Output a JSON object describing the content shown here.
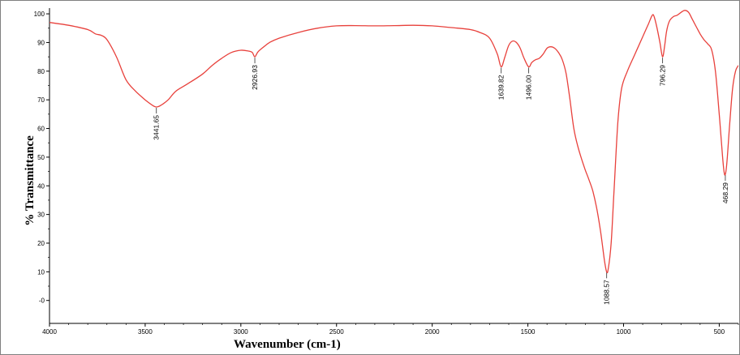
{
  "chart_data": {
    "type": "line",
    "xlabel": "Wavenumber  (cm-1)",
    "ylabel": "% Transmittance",
    "xlim": [
      4000,
      400
    ],
    "ylim": [
      -8,
      102
    ],
    "x_reversed": true,
    "grid": false,
    "line_color": "#e8413c",
    "x_ticks": [
      4000,
      3500,
      3000,
      2500,
      2000,
      1500,
      1000,
      500
    ],
    "y_ticks": [
      100,
      90,
      80,
      70,
      60,
      50,
      40,
      30,
      20,
      10,
      0
    ],
    "y_tick_labels": [
      "100",
      "90",
      "80",
      "70",
      "60",
      "50",
      "40",
      "30",
      "20",
      "10",
      "-0"
    ],
    "series": [
      {
        "points": [
          [
            4000,
            97
          ],
          [
            3900,
            96
          ],
          [
            3800,
            94.5
          ],
          [
            3760,
            93
          ],
          [
            3730,
            92.5
          ],
          [
            3700,
            91
          ],
          [
            3650,
            85
          ],
          [
            3600,
            77
          ],
          [
            3550,
            73
          ],
          [
            3500,
            70
          ],
          [
            3460,
            68
          ],
          [
            3441.65,
            67.5
          ],
          [
            3420,
            68
          ],
          [
            3380,
            70
          ],
          [
            3340,
            73
          ],
          [
            3280,
            75.5
          ],
          [
            3200,
            79
          ],
          [
            3150,
            82
          ],
          [
            3100,
            84.5
          ],
          [
            3050,
            86.5
          ],
          [
            3000,
            87.3
          ],
          [
            2960,
            87
          ],
          [
            2940,
            86.5
          ],
          [
            2926.93,
            85
          ],
          [
            2910,
            86.8
          ],
          [
            2880,
            88.5
          ],
          [
            2850,
            90
          ],
          [
            2800,
            91.5
          ],
          [
            2700,
            93.5
          ],
          [
            2600,
            95
          ],
          [
            2500,
            95.8
          ],
          [
            2400,
            95.9
          ],
          [
            2300,
            95.8
          ],
          [
            2200,
            95.9
          ],
          [
            2100,
            96
          ],
          [
            2000,
            95.8
          ],
          [
            1900,
            95.2
          ],
          [
            1800,
            94.5
          ],
          [
            1750,
            93.5
          ],
          [
            1700,
            91.5
          ],
          [
            1660,
            86
          ],
          [
            1639.82,
            81.5
          ],
          [
            1620,
            85
          ],
          [
            1600,
            89
          ],
          [
            1580,
            90.5
          ],
          [
            1560,
            90
          ],
          [
            1540,
            88
          ],
          [
            1520,
            84.5
          ],
          [
            1496,
            81.5
          ],
          [
            1480,
            83
          ],
          [
            1460,
            84
          ],
          [
            1440,
            84.5
          ],
          [
            1420,
            86
          ],
          [
            1400,
            88
          ],
          [
            1380,
            88.5
          ],
          [
            1360,
            88
          ],
          [
            1340,
            86.5
          ],
          [
            1320,
            84
          ],
          [
            1300,
            79
          ],
          [
            1280,
            70
          ],
          [
            1260,
            60
          ],
          [
            1240,
            54
          ],
          [
            1220,
            49.5
          ],
          [
            1200,
            45.5
          ],
          [
            1180,
            42
          ],
          [
            1160,
            38
          ],
          [
            1140,
            32
          ],
          [
            1120,
            24
          ],
          [
            1100,
            14
          ],
          [
            1088.57,
            10
          ],
          [
            1080,
            11
          ],
          [
            1065,
            20
          ],
          [
            1050,
            38
          ],
          [
            1030,
            62
          ],
          [
            1010,
            74
          ],
          [
            980,
            80
          ],
          [
            940,
            86
          ],
          [
            900,
            92
          ],
          [
            870,
            96.5
          ],
          [
            850,
            99.5
          ],
          [
            840,
            99
          ],
          [
            825,
            95
          ],
          [
            810,
            90
          ],
          [
            796.29,
            85
          ],
          [
            785,
            89
          ],
          [
            775,
            94
          ],
          [
            760,
            97.5
          ],
          [
            740,
            99
          ],
          [
            720,
            99.5
          ],
          [
            700,
            100.5
          ],
          [
            680,
            101.2
          ],
          [
            660,
            100.5
          ],
          [
            640,
            98
          ],
          [
            620,
            95.5
          ],
          [
            600,
            93
          ],
          [
            580,
            91
          ],
          [
            560,
            89.5
          ],
          [
            540,
            87.5
          ],
          [
            520,
            80
          ],
          [
            500,
            65
          ],
          [
            485,
            52
          ],
          [
            475,
            45
          ],
          [
            468.29,
            44
          ],
          [
            460,
            48
          ],
          [
            445,
            62
          ],
          [
            430,
            74
          ],
          [
            415,
            80
          ],
          [
            400,
            82
          ]
        ]
      }
    ],
    "peaks": [
      {
        "x": 3441.65,
        "y": 67.5,
        "label": "3441.65"
      },
      {
        "x": 2926.93,
        "y": 85,
        "label": "2926.93"
      },
      {
        "x": 1639.82,
        "y": 81.5,
        "label": "1639.82"
      },
      {
        "x": 1496,
        "y": 81.5,
        "label": "1496.00"
      },
      {
        "x": 1088.57,
        "y": 10,
        "label": "1088.57"
      },
      {
        "x": 796.29,
        "y": 85,
        "label": "796.29"
      },
      {
        "x": 468.29,
        "y": 44,
        "label": "468.29"
      }
    ]
  }
}
